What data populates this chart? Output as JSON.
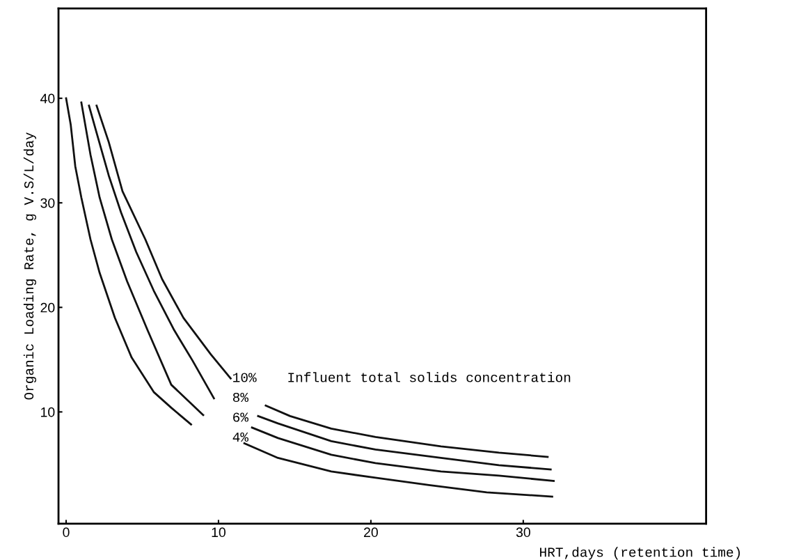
{
  "chart_data": {
    "type": "line",
    "xlabel": "HRT,days (retention time)",
    "ylabel": "Organic Loading Rate, g V.S/L/day",
    "annotations": [
      "Influent total solids concentration"
    ],
    "xlim": [
      -0.5,
      42
    ],
    "ylim": [
      -0.7,
      48.6
    ],
    "xticks": [
      0,
      10,
      20,
      30
    ],
    "yticks": [
      10,
      20,
      30,
      40
    ],
    "grid": false,
    "legend": false,
    "marker": "none",
    "line_style": "solid",
    "series": [
      {
        "name": "10%",
        "color": "#111111",
        "x": [
          2.0,
          2.8,
          3.7,
          5.2,
          6.3,
          7.7,
          9.5,
          10.8,
          null,
          13.1,
          14.7,
          17.4,
          20.3,
          24.6,
          28.4,
          31.6
        ],
        "values": [
          39.3,
          35.8,
          31.1,
          26.5,
          22.7,
          19.0,
          15.5,
          13.2,
          null,
          10.6,
          9.6,
          8.4,
          7.6,
          6.7,
          6.1,
          5.7
        ]
      },
      {
        "name": "8%",
        "color": "#111111",
        "x": [
          1.5,
          2.0,
          2.8,
          3.6,
          4.6,
          5.75,
          7.1,
          8.3,
          9.7,
          null,
          12.6,
          13.9,
          17.4,
          20.3,
          24.6,
          28.4,
          31.8
        ],
        "values": [
          39.3,
          36.7,
          32.6,
          29.1,
          25.3,
          21.6,
          17.8,
          14.9,
          11.3,
          null,
          9.6,
          8.9,
          7.2,
          6.4,
          5.6,
          4.9,
          4.5
        ]
      },
      {
        "name": "6%",
        "color": "#111111",
        "x": [
          1.0,
          1.6,
          2.2,
          3.0,
          4.0,
          5.35,
          6.9,
          9.0,
          null,
          12.2,
          13.9,
          17.4,
          20.3,
          24.6,
          28.4,
          32.0
        ],
        "values": [
          39.6,
          34.6,
          30.5,
          26.5,
          22.5,
          17.8,
          12.6,
          9.7,
          null,
          8.5,
          7.5,
          5.9,
          5.1,
          4.3,
          3.9,
          3.4
        ]
      },
      {
        "name": "4%",
        "color": "#111111",
        "x": [
          0.0,
          0.3,
          0.6,
          1.0,
          1.6,
          2.2,
          3.2,
          4.3,
          5.75,
          6.9,
          8.2,
          null,
          11.7,
          13.9,
          17.4,
          20.3,
          23.8,
          27.6,
          31.9
        ],
        "values": [
          40.0,
          37.5,
          33.5,
          30.5,
          26.5,
          23.3,
          19.0,
          15.2,
          11.9,
          10.4,
          8.8,
          null,
          7.0,
          5.6,
          4.3,
          3.7,
          3.0,
          2.3,
          1.9
        ]
      }
    ]
  }
}
